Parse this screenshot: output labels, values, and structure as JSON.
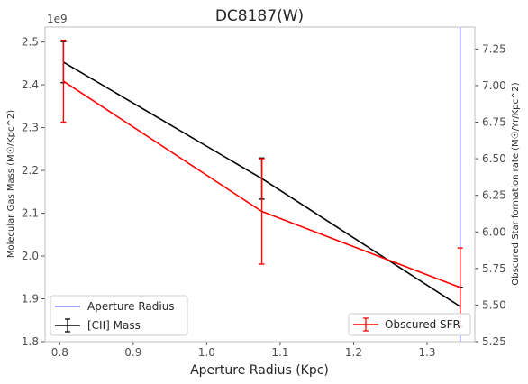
{
  "chart_data": {
    "type": "line",
    "title": "DC8187(W)",
    "xlabel": "Aperture Radius (Kpc)",
    "ylabel_left": "Molecular Gas Mass (M☉/Kpc^2)",
    "ylabel_right": "Obscured Star formation rate (M☉/Yr/Kpc^2)",
    "left_offset_label": "1e9",
    "xlim": [
      0.78,
      1.365
    ],
    "ylim_left": [
      1.8,
      2.535
    ],
    "ylim_right": [
      5.25,
      7.4
    ],
    "x_ticks": [
      {
        "value": 0.8,
        "label": "0.8"
      },
      {
        "value": 0.9,
        "label": "0.9"
      },
      {
        "value": 1.0,
        "label": "1.0"
      },
      {
        "value": 1.1,
        "label": "1.1"
      },
      {
        "value": 1.2,
        "label": "1.2"
      },
      {
        "value": 1.3,
        "label": "1.3"
      }
    ],
    "y_left_ticks": [
      {
        "value": 1.8,
        "label": "1.8"
      },
      {
        "value": 1.9,
        "label": "1.9"
      },
      {
        "value": 2.0,
        "label": "2.0"
      },
      {
        "value": 2.1,
        "label": "2.1"
      },
      {
        "value": 2.2,
        "label": "2.2"
      },
      {
        "value": 2.3,
        "label": "2.3"
      },
      {
        "value": 2.4,
        "label": "2.4"
      },
      {
        "value": 2.5,
        "label": "2.5"
      }
    ],
    "y_right_ticks": [
      {
        "value": 5.25,
        "label": "5.25"
      },
      {
        "value": 5.5,
        "label": "5.50"
      },
      {
        "value": 5.75,
        "label": "5.75"
      },
      {
        "value": 6.0,
        "label": "6.00"
      },
      {
        "value": 6.25,
        "label": "6.25"
      },
      {
        "value": 6.5,
        "label": "6.50"
      },
      {
        "value": 6.75,
        "label": "6.75"
      },
      {
        "value": 7.0,
        "label": "7.00"
      },
      {
        "value": 7.25,
        "label": "7.25"
      }
    ],
    "series": [
      {
        "name": "[CII] Mass",
        "axis": "left",
        "color": "#000000",
        "x": [
          0.805,
          1.075,
          1.345
        ],
        "y": [
          2.453,
          2.181,
          1.882
        ],
        "err": [
          0.048,
          0.048,
          0.045
        ]
      },
      {
        "name": "Obscured SFR",
        "axis": "right",
        "color": "#ff0000",
        "x": [
          0.805,
          1.075,
          1.345
        ],
        "y": [
          7.03,
          6.14,
          5.62
        ],
        "err": [
          0.28,
          0.36,
          0.27
        ]
      }
    ],
    "vline": {
      "name": "Aperture Radius",
      "x": 1.345,
      "color": "#8080ff"
    },
    "grid": false,
    "legends": [
      {
        "placement": "lower-left",
        "entries": [
          "Aperture Radius",
          "[CII] Mass"
        ]
      },
      {
        "placement": "lower-right",
        "entries": [
          "Obscured SFR"
        ]
      }
    ]
  }
}
